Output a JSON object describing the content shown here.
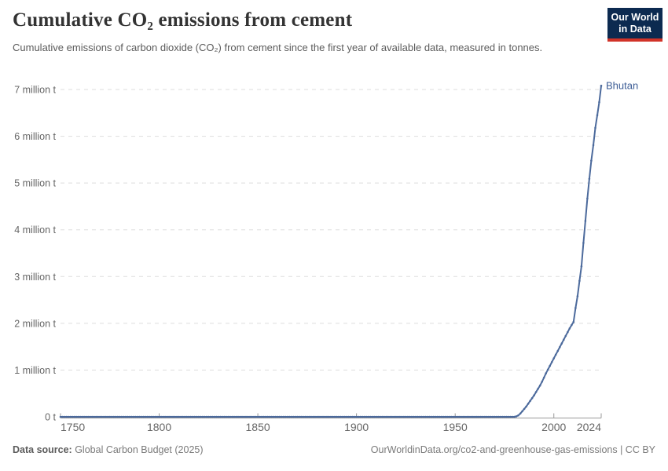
{
  "header": {
    "title": "Cumulative CO₂ emissions from cement",
    "subtitle": "Cumulative emissions of carbon dioxide (CO₂) from cement since the first year of available data, measured in tonnes.",
    "logo_line1": "Our World",
    "logo_line2": "in Data"
  },
  "footer": {
    "source_label": "Data source:",
    "source_text": " Global Carbon Budget (2025)",
    "right_text": "OurWorldinData.org/co2-and-greenhouse-gas-emissions | CC BY"
  },
  "colors": {
    "line": "#4c6a9c",
    "entity_label": "#3d5d96",
    "grid": "#dddddd",
    "axis": "#999999",
    "tick_text": "#666666",
    "logo_bg": "#0c2a50",
    "logo_red": "#d13328"
  },
  "chart_data": {
    "type": "line",
    "title": "Cumulative CO₂ emissions from cement",
    "subtitle": "Cumulative emissions of carbon dioxide (CO₂) from cement since the first year of available data, measured in tonnes.",
    "entity": "Bhutan",
    "unit": "tonnes",
    "values_unit": "million t",
    "xlabel": "",
    "ylabel": "",
    "x_range": [
      1750,
      2024
    ],
    "y_range_million_t": [
      0,
      7
    ],
    "grid": "horizontal-dashed",
    "legend_position": "end-of-line-label",
    "y_ticks": [
      {
        "value": 0,
        "label": "0 t"
      },
      {
        "value": 1,
        "label": "1 million t"
      },
      {
        "value": 2,
        "label": "2 million t"
      },
      {
        "value": 3,
        "label": "3 million t"
      },
      {
        "value": 4,
        "label": "4 million t"
      },
      {
        "value": 5,
        "label": "5 million t"
      },
      {
        "value": 6,
        "label": "6 million t"
      },
      {
        "value": 7,
        "label": "7 million t"
      }
    ],
    "x_ticks": [
      {
        "year": 1750,
        "label": "1750",
        "anchor": "start"
      },
      {
        "year": 1800,
        "label": "1800",
        "anchor": "middle"
      },
      {
        "year": 1850,
        "label": "1850",
        "anchor": "middle"
      },
      {
        "year": 1900,
        "label": "1900",
        "anchor": "middle"
      },
      {
        "year": 1950,
        "label": "1950",
        "anchor": "middle"
      },
      {
        "year": 2000,
        "label": "2000",
        "anchor": "middle"
      },
      {
        "year": 2024,
        "label": "2024",
        "anchor": "end"
      }
    ],
    "series": [
      {
        "name": "Bhutan",
        "flat_segment": {
          "start_year": 1750,
          "end_year": 1980,
          "value_million_t": 0
        },
        "points_million_t": [
          [
            1981,
            0.01
          ],
          [
            1982,
            0.03
          ],
          [
            1983,
            0.07
          ],
          [
            1984,
            0.12
          ],
          [
            1985,
            0.17
          ],
          [
            1986,
            0.22
          ],
          [
            1987,
            0.28
          ],
          [
            1988,
            0.34
          ],
          [
            1989,
            0.4
          ],
          [
            1990,
            0.46
          ],
          [
            1991,
            0.53
          ],
          [
            1992,
            0.6
          ],
          [
            1993,
            0.67
          ],
          [
            1994,
            0.75
          ],
          [
            1995,
            0.84
          ],
          [
            1996,
            0.93
          ],
          [
            1997,
            1.01
          ],
          [
            1998,
            1.09
          ],
          [
            1999,
            1.17
          ],
          [
            2000,
            1.25
          ],
          [
            2001,
            1.33
          ],
          [
            2002,
            1.41
          ],
          [
            2003,
            1.49
          ],
          [
            2004,
            1.57
          ],
          [
            2005,
            1.65
          ],
          [
            2006,
            1.73
          ],
          [
            2007,
            1.81
          ],
          [
            2008,
            1.89
          ],
          [
            2009,
            1.96
          ],
          [
            2010,
            2.03
          ],
          [
            2011,
            2.33
          ],
          [
            2012,
            2.58
          ],
          [
            2013,
            2.91
          ],
          [
            2014,
            3.22
          ],
          [
            2015,
            3.72
          ],
          [
            2016,
            4.19
          ],
          [
            2017,
            4.67
          ],
          [
            2018,
            5.09
          ],
          [
            2019,
            5.48
          ],
          [
            2020,
            5.81
          ],
          [
            2021,
            6.18
          ],
          [
            2022,
            6.45
          ],
          [
            2023,
            6.73
          ],
          [
            2024,
            7.08
          ]
        ]
      }
    ]
  }
}
